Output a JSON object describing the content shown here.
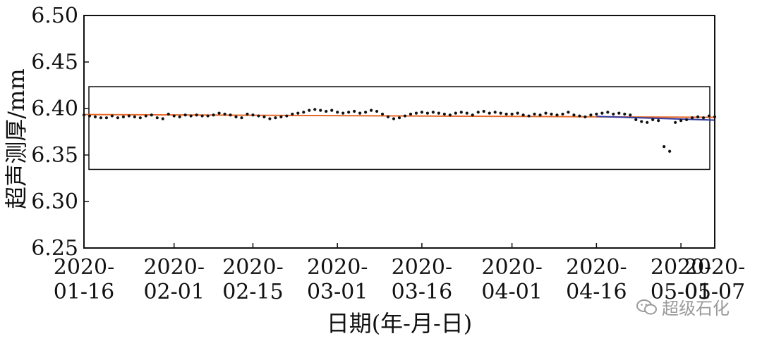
{
  "chart_data": {
    "type": "scatter",
    "title": "",
    "xlabel": "日期(年-月-日)",
    "ylabel": "超声测厚/mm",
    "x_tick_labels": [
      {
        "date": "2020-01-16",
        "line1": "2020-",
        "line2": "01-16"
      },
      {
        "date": "2020-02-01",
        "line1": "2020-",
        "line2": "02-01"
      },
      {
        "date": "2020-02-15",
        "line1": "2020-",
        "line2": "02-15"
      },
      {
        "date": "2020-03-01",
        "line1": "2020-",
        "line2": "03-01"
      },
      {
        "date": "2020-03-16",
        "line1": "2020-",
        "line2": "03-16"
      },
      {
        "date": "2020-04-01",
        "line1": "2020-",
        "line2": "04-01"
      },
      {
        "date": "2020-04-16",
        "line1": "2020-",
        "line2": "04-16"
      },
      {
        "date": "2020-05-01",
        "line1": "2020-",
        "line2": "05-01"
      },
      {
        "date": "2020-05-07",
        "line1": "2020-",
        "line2": "05-07"
      }
    ],
    "y_ticks": [
      "6.25",
      "6.30",
      "6.35",
      "6.40",
      "6.45",
      "6.50"
    ],
    "xlim": [
      "2020-01-16",
      "2020-05-07"
    ],
    "ylim": [
      6.25,
      6.5
    ],
    "grid": false,
    "series": [
      {
        "color": "#111111",
        "points": [
          [
            "2020-01-16",
            6.393
          ],
          [
            "2020-01-17",
            6.392
          ],
          [
            "2020-01-18",
            6.391
          ],
          [
            "2020-01-19",
            6.39
          ],
          [
            "2020-01-20",
            6.39
          ],
          [
            "2020-01-21",
            6.392
          ],
          [
            "2020-01-22",
            6.39
          ],
          [
            "2020-01-23",
            6.391
          ],
          [
            "2020-01-24",
            6.392
          ],
          [
            "2020-01-25",
            6.391
          ],
          [
            "2020-01-26",
            6.39
          ],
          [
            "2020-01-27",
            6.392
          ],
          [
            "2020-01-28",
            6.393
          ],
          [
            "2020-01-29",
            6.39
          ],
          [
            "2020-01-30",
            6.389
          ],
          [
            "2020-01-31",
            6.394
          ],
          [
            "2020-02-01",
            6.392
          ],
          [
            "2020-02-02",
            6.391
          ],
          [
            "2020-02-03",
            6.393
          ],
          [
            "2020-02-04",
            6.392
          ],
          [
            "2020-02-05",
            6.393
          ],
          [
            "2020-02-06",
            6.392
          ],
          [
            "2020-02-07",
            6.392
          ],
          [
            "2020-02-08",
            6.393
          ],
          [
            "2020-02-09",
            6.395
          ],
          [
            "2020-02-10",
            6.394
          ],
          [
            "2020-02-11",
            6.393
          ],
          [
            "2020-02-12",
            6.391
          ],
          [
            "2020-02-13",
            6.39
          ],
          [
            "2020-02-14",
            6.394
          ],
          [
            "2020-02-15",
            6.393
          ],
          [
            "2020-02-16",
            6.392
          ],
          [
            "2020-02-17",
            6.391
          ],
          [
            "2020-02-18",
            6.389
          ],
          [
            "2020-02-19",
            6.39
          ],
          [
            "2020-02-20",
            6.391
          ],
          [
            "2020-02-21",
            6.392
          ],
          [
            "2020-02-22",
            6.394
          ],
          [
            "2020-02-23",
            6.395
          ],
          [
            "2020-02-24",
            6.396
          ],
          [
            "2020-02-25",
            6.398
          ],
          [
            "2020-02-26",
            6.399
          ],
          [
            "2020-02-27",
            6.398
          ],
          [
            "2020-02-28",
            6.397
          ],
          [
            "2020-02-29",
            6.398
          ],
          [
            "2020-03-01",
            6.396
          ],
          [
            "2020-03-02",
            6.395
          ],
          [
            "2020-03-03",
            6.396
          ],
          [
            "2020-03-04",
            6.397
          ],
          [
            "2020-03-05",
            6.395
          ],
          [
            "2020-03-06",
            6.396
          ],
          [
            "2020-03-07",
            6.398
          ],
          [
            "2020-03-08",
            6.397
          ],
          [
            "2020-03-09",
            6.394
          ],
          [
            "2020-03-10",
            6.391
          ],
          [
            "2020-03-11",
            6.389
          ],
          [
            "2020-03-12",
            6.39
          ],
          [
            "2020-03-13",
            6.392
          ],
          [
            "2020-03-14",
            6.394
          ],
          [
            "2020-03-15",
            6.395
          ],
          [
            "2020-03-16",
            6.396
          ],
          [
            "2020-03-17",
            6.395
          ],
          [
            "2020-03-18",
            6.396
          ],
          [
            "2020-03-19",
            6.395
          ],
          [
            "2020-03-20",
            6.394
          ],
          [
            "2020-03-21",
            6.393
          ],
          [
            "2020-03-22",
            6.395
          ],
          [
            "2020-03-23",
            6.396
          ],
          [
            "2020-03-24",
            6.395
          ],
          [
            "2020-03-25",
            6.393
          ],
          [
            "2020-03-26",
            6.396
          ],
          [
            "2020-03-27",
            6.397
          ],
          [
            "2020-03-28",
            6.395
          ],
          [
            "2020-03-29",
            6.396
          ],
          [
            "2020-03-30",
            6.395
          ],
          [
            "2020-03-31",
            6.394
          ],
          [
            "2020-04-01",
            6.394
          ],
          [
            "2020-04-02",
            6.395
          ],
          [
            "2020-04-03",
            6.393
          ],
          [
            "2020-04-04",
            6.392
          ],
          [
            "2020-04-05",
            6.394
          ],
          [
            "2020-04-06",
            6.393
          ],
          [
            "2020-04-07",
            6.395
          ],
          [
            "2020-04-08",
            6.394
          ],
          [
            "2020-04-09",
            6.393
          ],
          [
            "2020-04-10",
            6.394
          ],
          [
            "2020-04-11",
            6.396
          ],
          [
            "2020-04-12",
            6.393
          ],
          [
            "2020-04-13",
            6.392
          ],
          [
            "2020-04-14",
            6.391
          ],
          [
            "2020-04-15",
            6.393
          ],
          [
            "2020-04-16",
            6.394
          ],
          [
            "2020-04-17",
            6.395
          ],
          [
            "2020-04-18",
            6.396
          ],
          [
            "2020-04-19",
            6.394
          ],
          [
            "2020-04-20",
            6.395
          ],
          [
            "2020-04-21",
            6.394
          ],
          [
            "2020-04-22",
            6.393
          ],
          [
            "2020-04-23",
            6.388
          ],
          [
            "2020-04-24",
            6.386
          ],
          [
            "2020-04-25",
            6.385
          ],
          [
            "2020-04-26",
            6.388
          ],
          [
            "2020-04-27",
            6.387
          ],
          [
            "2020-04-28",
            6.359
          ],
          [
            "2020-04-29",
            6.354
          ],
          [
            "2020-04-30",
            6.385
          ],
          [
            "2020-05-01",
            6.387
          ],
          [
            "2020-05-02",
            6.388
          ],
          [
            "2020-05-03",
            6.39
          ],
          [
            "2020-05-04",
            6.391
          ],
          [
            "2020-05-05",
            6.39
          ],
          [
            "2020-05-06",
            6.392
          ],
          [
            "2020-05-07",
            6.391
          ]
        ]
      }
    ],
    "trend_lines": [
      {
        "color": "#e8692a",
        "points": [
          [
            "2020-01-16",
            6.3935
          ],
          [
            "2020-05-07",
            6.3905
          ]
        ]
      },
      {
        "color": "#2f3aa0",
        "points": [
          [
            "2020-04-16",
            6.3915
          ],
          [
            "2020-05-07",
            6.3875
          ]
        ]
      }
    ],
    "highlight_box": {
      "color": "#111111",
      "x_range": [
        "2020-01-16",
        "2020-05-07"
      ],
      "y_range": [
        6.3345,
        6.4235
      ]
    }
  },
  "watermark": {
    "text": "超级石化",
    "icon": "wechat-icon",
    "color": "#9a9a9a"
  }
}
